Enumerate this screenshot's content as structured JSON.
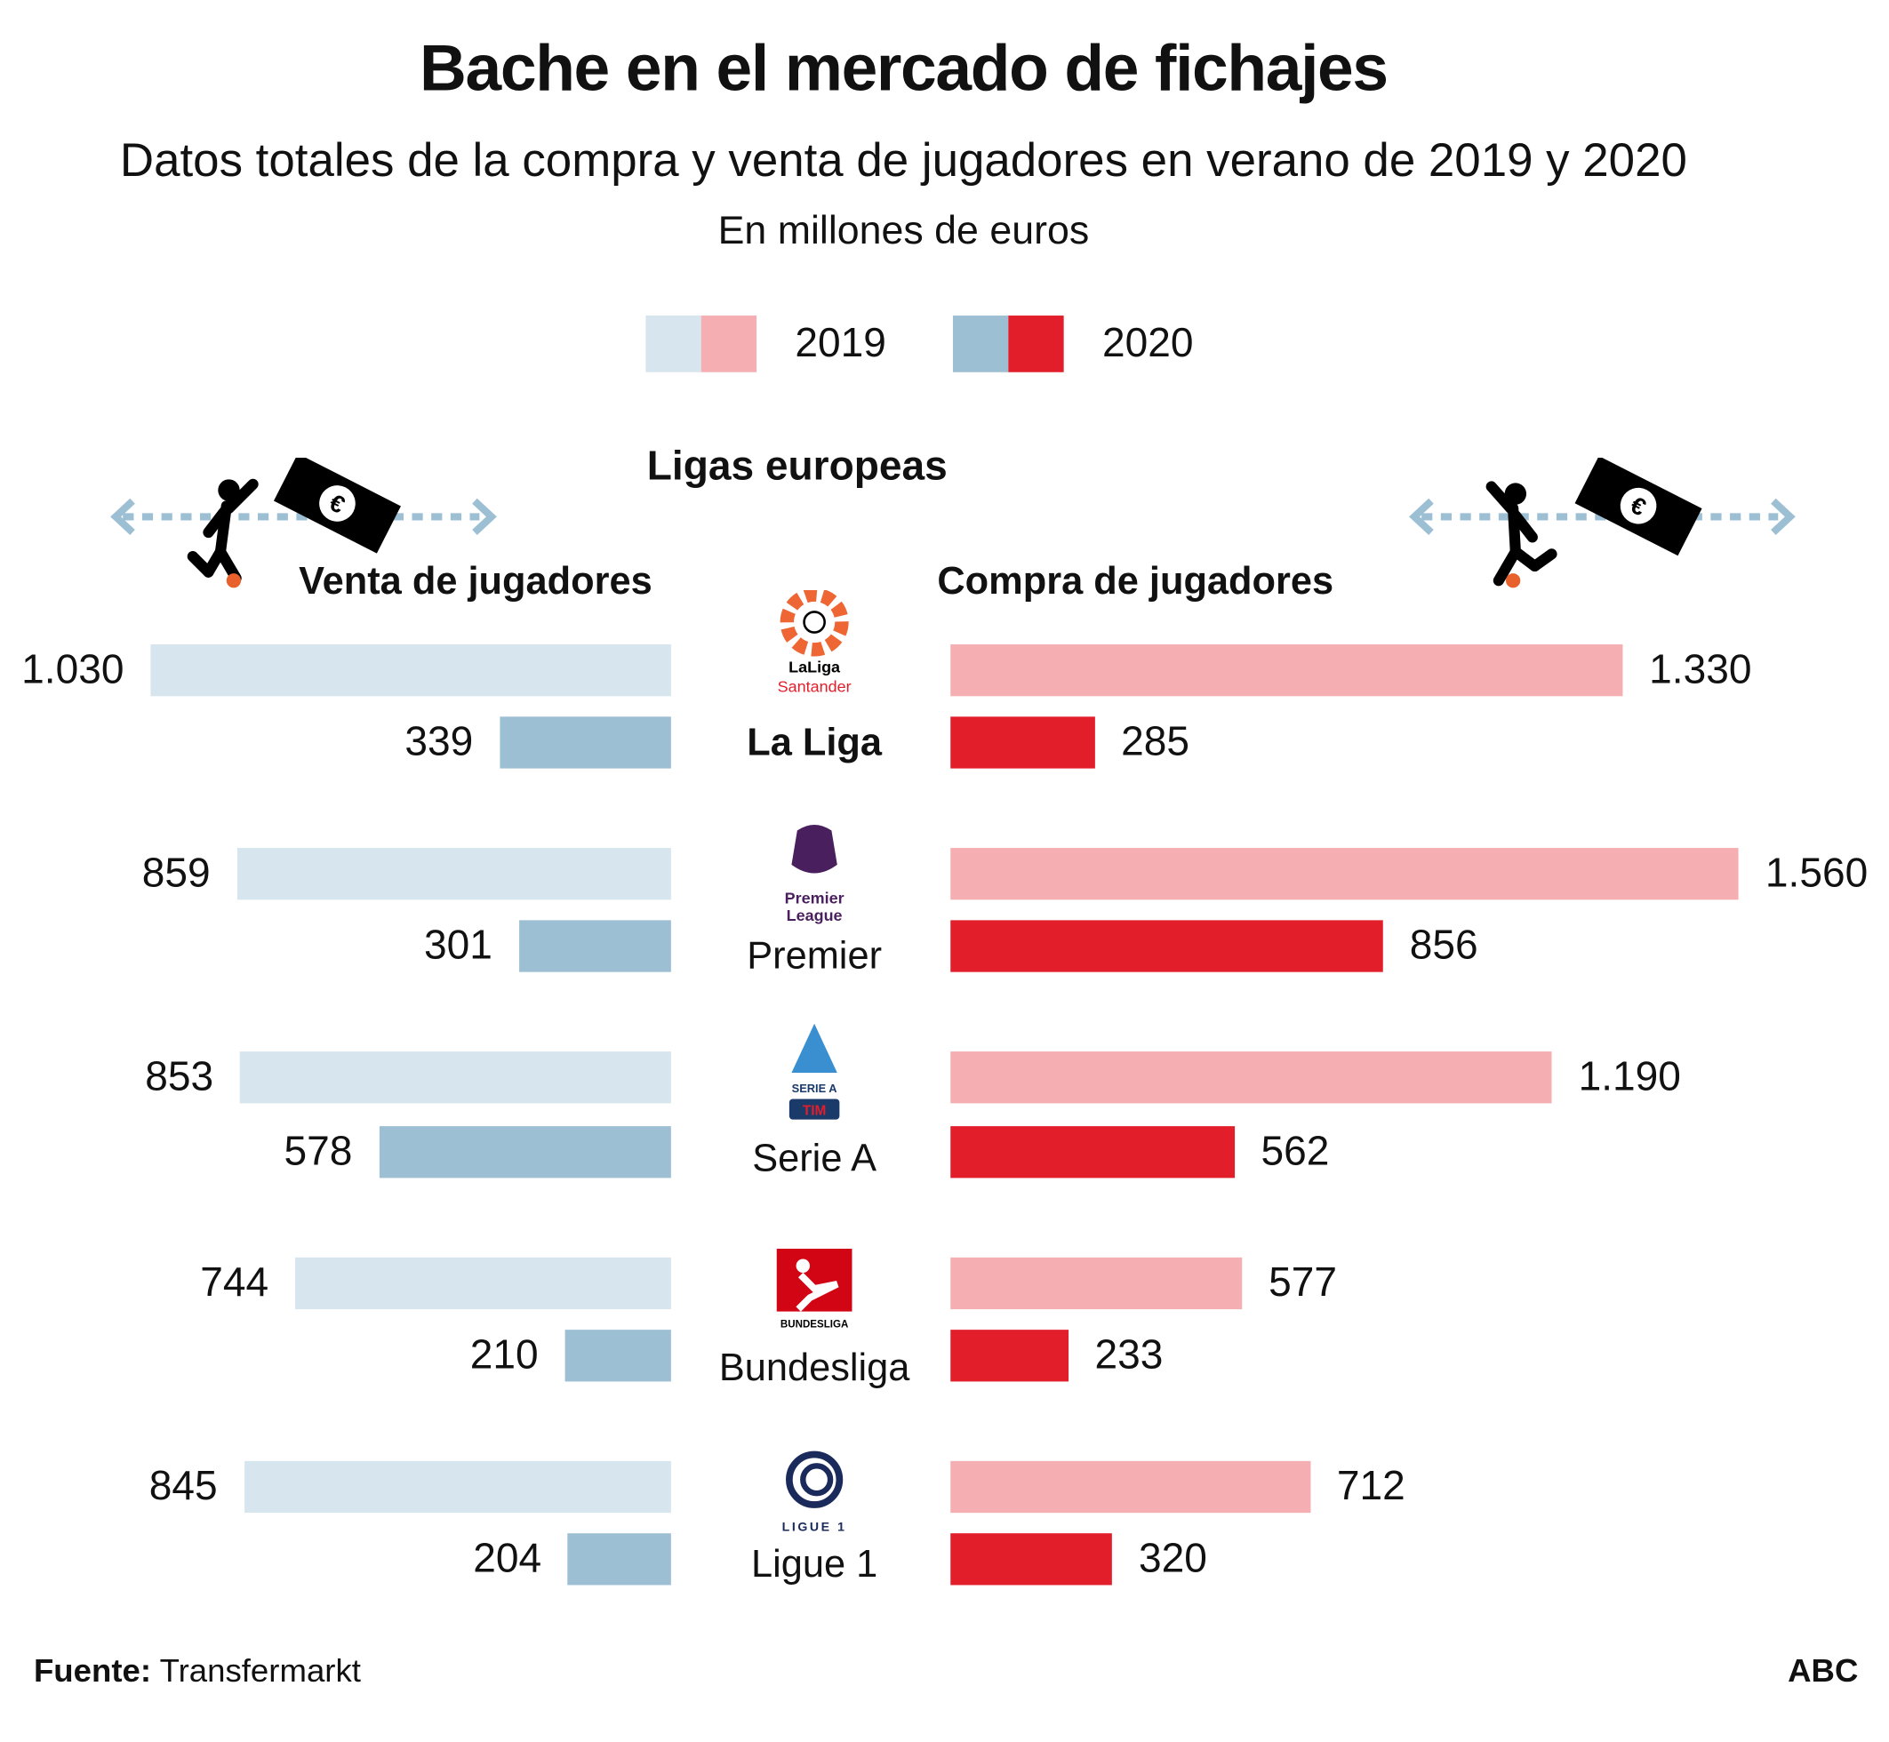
{
  "title": "Bache en el mercado de fichajes",
  "subtitle": "Datos totales de la compra y venta de jugadores en verano de 2019 y 2020",
  "units": "En millones de euros",
  "legend": [
    {
      "label": "2019",
      "colors": [
        "#d6e5ee",
        "#f5aeb2"
      ]
    },
    {
      "label": "2020",
      "colors": [
        "#9dbfd4",
        "#e31e2b"
      ]
    }
  ],
  "section_title": "Ligas europeas",
  "left_header": "Venta de jugadores",
  "right_header": "Compra de jugadores",
  "icons": [
    "player-kicking-icon",
    "euro-banknote-icon",
    "double-arrow-icon"
  ],
  "footer": {
    "source_label": "Fuente:",
    "source": "Transfermarkt",
    "brand": "ABC"
  },
  "chart_data": {
    "type": "bar",
    "orientation": "horizontal-butterfly",
    "categories": [
      "La Liga",
      "Premier",
      "Serie A",
      "Bundesliga",
      "Ligue 1"
    ],
    "logo_text": [
      "LaLiga Santander",
      "Premier League",
      "SERIE A TIM",
      "BUNDESLIGA",
      "LIGUE 1"
    ],
    "series": [
      {
        "name": "Venta de jugadores 2019",
        "side": "left",
        "color": "#d6e5ee",
        "values": [
          1030,
          859,
          853,
          744,
          845
        ],
        "labels": [
          "1.030",
          "859",
          "853",
          "744",
          "845"
        ]
      },
      {
        "name": "Venta de jugadores 2020",
        "side": "left",
        "color": "#9dbfd4",
        "values": [
          339,
          301,
          578,
          210,
          204
        ],
        "labels": [
          "339",
          "301",
          "578",
          "210",
          "204"
        ]
      },
      {
        "name": "Compra de jugadores 2019",
        "side": "right",
        "color": "#f5aeb2",
        "values": [
          1330,
          1560,
          1190,
          577,
          712
        ],
        "labels": [
          "1.330",
          "1.560",
          "1.190",
          "577",
          "712"
        ]
      },
      {
        "name": "Compra de jugadores 2020",
        "side": "right",
        "color": "#e31e2b",
        "values": [
          285,
          856,
          562,
          233,
          320
        ],
        "labels": [
          "285",
          "856",
          "562",
          "233",
          "320"
        ]
      }
    ]
  }
}
